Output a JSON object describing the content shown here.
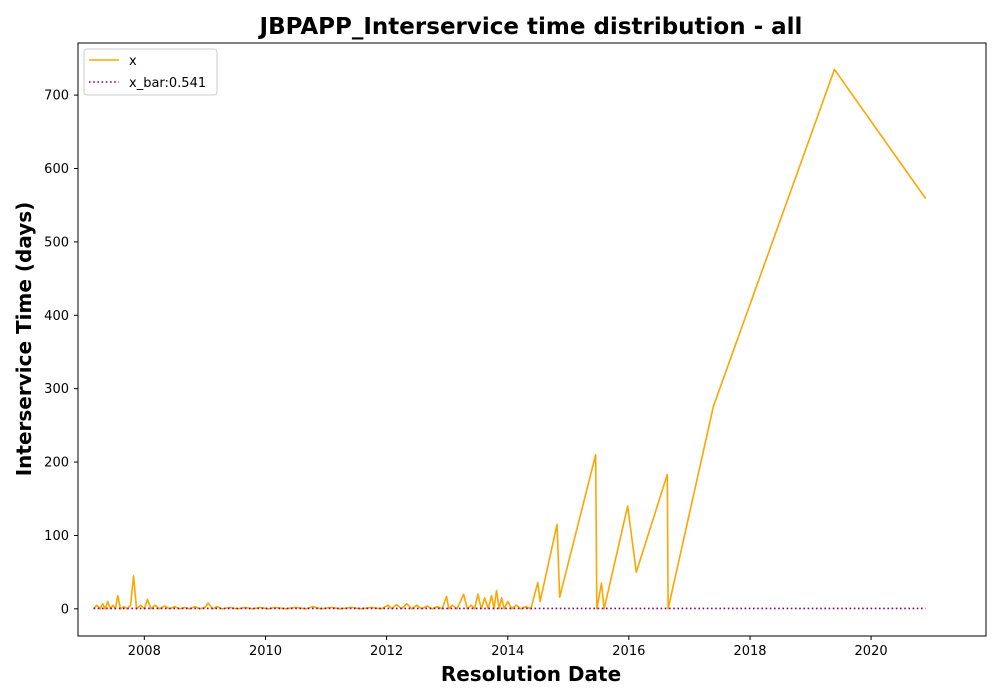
{
  "chart_data": {
    "type": "line",
    "title": "JBPAPP_Interservice time distribution - all",
    "xlabel": "Resolution Date",
    "ylabel": "Interservice Time (days)",
    "xlim": [
      "2006-11-27",
      "2021-11-24"
    ],
    "ylim": [
      -37,
      771
    ],
    "x_ticks": [
      "2008",
      "2010",
      "2012",
      "2014",
      "2016",
      "2018",
      "2020"
    ],
    "y_ticks": [
      0,
      100,
      200,
      300,
      400,
      500,
      600,
      700
    ],
    "grid": false,
    "legend_position": "upper left",
    "series": [
      {
        "name": "x",
        "color": "#FFA500",
        "style": "solid",
        "x": [
          "2007-03-01",
          "2007-03-20",
          "2007-04-10",
          "2007-04-25",
          "2007-05-10",
          "2007-05-25",
          "2007-06-10",
          "2007-06-25",
          "2007-07-10",
          "2007-07-25",
          "2007-08-10",
          "2007-09-01",
          "2007-09-20",
          "2007-10-10",
          "2007-10-28",
          "2007-11-15",
          "2007-12-10",
          "2008-01-01",
          "2008-01-20",
          "2008-02-10",
          "2008-03-05",
          "2008-04-01",
          "2008-05-01",
          "2008-06-01",
          "2008-07-01",
          "2008-08-01",
          "2008-09-01",
          "2008-10-01",
          "2008-11-01",
          "2008-12-01",
          "2009-01-01",
          "2009-01-20",
          "2009-02-15",
          "2009-03-15",
          "2009-04-15",
          "2009-06-01",
          "2009-07-15",
          "2009-09-01",
          "2009-10-15",
          "2009-12-01",
          "2010-01-15",
          "2010-03-01",
          "2010-05-01",
          "2010-07-01",
          "2010-09-01",
          "2010-10-15",
          "2010-12-01",
          "2011-02-01",
          "2011-04-01",
          "2011-06-01",
          "2011-08-01",
          "2011-10-01",
          "2011-12-01",
          "2012-01-10",
          "2012-02-01",
          "2012-03-01",
          "2012-04-01",
          "2012-05-01",
          "2012-06-01",
          "2012-07-01",
          "2012-08-01",
          "2012-09-01",
          "2012-10-01",
          "2012-11-01",
          "2012-12-01",
          "2012-12-28",
          "2013-01-10",
          "2013-02-01",
          "2013-03-01",
          "2013-03-25",
          "2013-04-10",
          "2013-05-01",
          "2013-05-25",
          "2013-06-15",
          "2013-07-05",
          "2013-07-25",
          "2013-08-15",
          "2013-09-05",
          "2013-09-25",
          "2013-10-10",
          "2013-10-25",
          "2013-11-10",
          "2013-11-25",
          "2013-12-10",
          "2014-01-01",
          "2014-01-25",
          "2014-02-20",
          "2014-03-20",
          "2014-04-20",
          "2014-05-20",
          "2014-07-01",
          "2014-07-15",
          "2014-10-25",
          "2014-11-10",
          "2015-06-15",
          "2015-06-22",
          "2015-07-20",
          "2015-08-05",
          "2015-12-25",
          "2016-02-15",
          "2016-08-20",
          "2016-08-25",
          "2017-05-25",
          "2019-05-25",
          "2020-11-25"
        ],
        "values": [
          0,
          5,
          0,
          7,
          0,
          10,
          0,
          5,
          0,
          18,
          0,
          3,
          0,
          5,
          45,
          0,
          5,
          0,
          13,
          0,
          5,
          0,
          4,
          0,
          3,
          0,
          2,
          0,
          3,
          0,
          2,
          8,
          0,
          3,
          0,
          2,
          0,
          2,
          0,
          2,
          0,
          2,
          0,
          2,
          0,
          3,
          0,
          2,
          0,
          2,
          0,
          2,
          0,
          5,
          0,
          6,
          0,
          7,
          0,
          5,
          0,
          4,
          0,
          3,
          0,
          17,
          0,
          5,
          0,
          12,
          20,
          0,
          5,
          0,
          20,
          0,
          15,
          0,
          18,
          0,
          25,
          0,
          15,
          0,
          10,
          0,
          5,
          0,
          3,
          0,
          36,
          10,
          115,
          16,
          210,
          0,
          35,
          0,
          140,
          50,
          183,
          0,
          276,
          735,
          559
        ]
      },
      {
        "name": "x_bar:0.541",
        "color": "#800080",
        "style": "dotted",
        "x": [
          "2007-03-01",
          "2020-11-25"
        ],
        "values": [
          0.541,
          0.541
        ]
      }
    ]
  }
}
